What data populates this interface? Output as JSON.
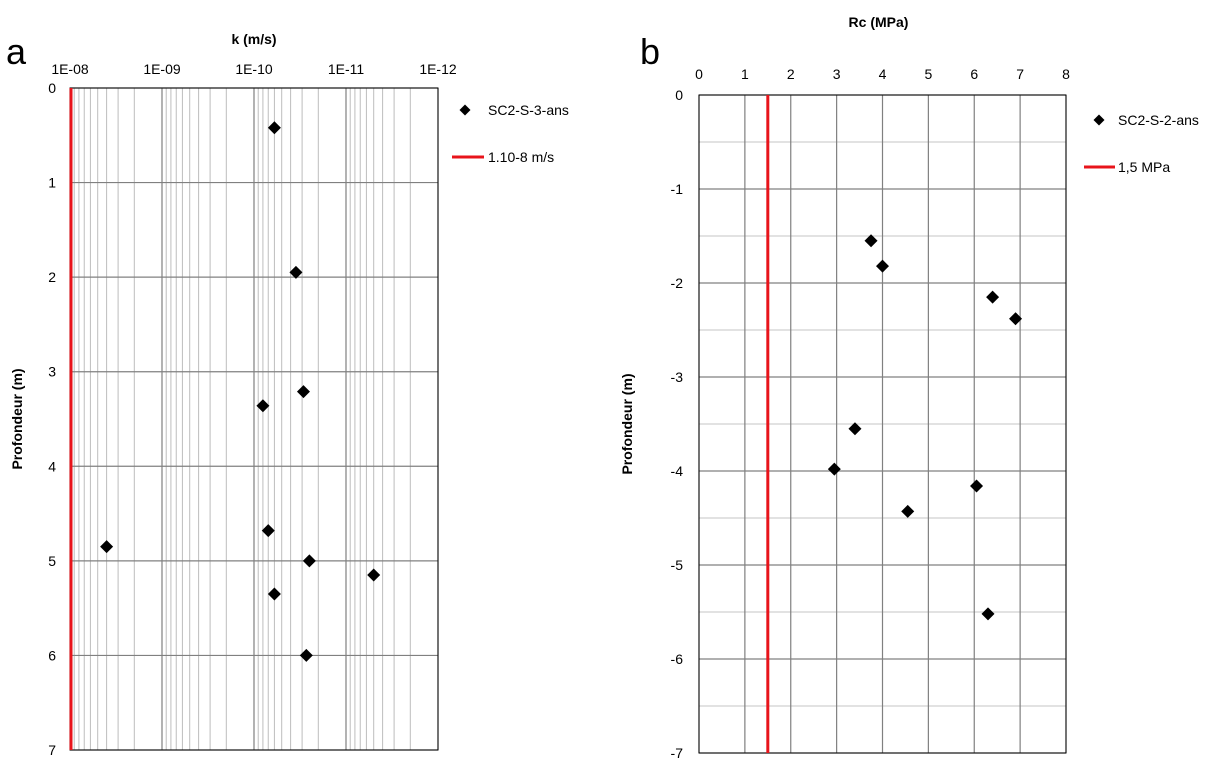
{
  "chart_data": [
    {
      "panel_label": "a",
      "type": "scatter",
      "title": "",
      "xlabel": "k (m/s)",
      "ylabel": "Profondeur  (m)",
      "x_scale": "log",
      "x_reversed": true,
      "xlim": [
        1e-08,
        1e-12
      ],
      "x_ticks": [
        "1E-08",
        "1E-09",
        "1E-10",
        "1E-11",
        "1E-12"
      ],
      "ylim": [
        0,
        7
      ],
      "y_reversed": true,
      "y_ticks": [
        "0",
        "1",
        "2",
        "3",
        "4",
        "5",
        "6",
        "7"
      ],
      "grid": true,
      "legend_position": "right",
      "series": [
        {
          "name": "SC2-S-3-ans",
          "marker": "diamond",
          "color": "#000000",
          "points": [
            {
              "x": 6e-11,
              "y": 0.42
            },
            {
              "x": 3.5e-11,
              "y": 1.95
            },
            {
              "x": 2.9e-11,
              "y": 3.21
            },
            {
              "x": 8e-11,
              "y": 3.36
            },
            {
              "x": 7e-11,
              "y": 4.68
            },
            {
              "x": 4e-09,
              "y": 4.85
            },
            {
              "x": 2.5e-11,
              "y": 5.0
            },
            {
              "x": 5e-12,
              "y": 5.15
            },
            {
              "x": 6e-11,
              "y": 5.35
            },
            {
              "x": 2.7e-11,
              "y": 6.0
            }
          ]
        }
      ],
      "reference_line": {
        "name": "1.10-8 m/s",
        "x": 1e-08,
        "color": "#e8141b"
      }
    },
    {
      "panel_label": "b",
      "type": "scatter",
      "title": "",
      "xlabel": "Rc (MPa)",
      "ylabel": "Profondeur (m)",
      "xlim": [
        0,
        8
      ],
      "x_ticks": [
        "0",
        "1",
        "2",
        "3",
        "4",
        "5",
        "6",
        "7",
        "8"
      ],
      "ylim": [
        -7,
        0
      ],
      "y_ticks": [
        "0",
        "-1",
        "-2",
        "-3",
        "-4",
        "-5",
        "-6",
        "-7"
      ],
      "grid": true,
      "legend_position": "right",
      "series": [
        {
          "name": "SC2-S-2-ans",
          "marker": "diamond",
          "color": "#000000",
          "points": [
            {
              "x": 3.75,
              "y": -1.55
            },
            {
              "x": 4.0,
              "y": -1.82
            },
            {
              "x": 6.4,
              "y": -2.15
            },
            {
              "x": 6.9,
              "y": -2.38
            },
            {
              "x": 3.4,
              "y": -3.55
            },
            {
              "x": 2.95,
              "y": -3.98
            },
            {
              "x": 6.05,
              "y": -4.16
            },
            {
              "x": 4.55,
              "y": -4.43
            },
            {
              "x": 6.3,
              "y": -5.52
            }
          ]
        }
      ],
      "reference_line": {
        "name": "1,5 MPa",
        "x": 1.5,
        "color": "#e8141b"
      }
    }
  ]
}
